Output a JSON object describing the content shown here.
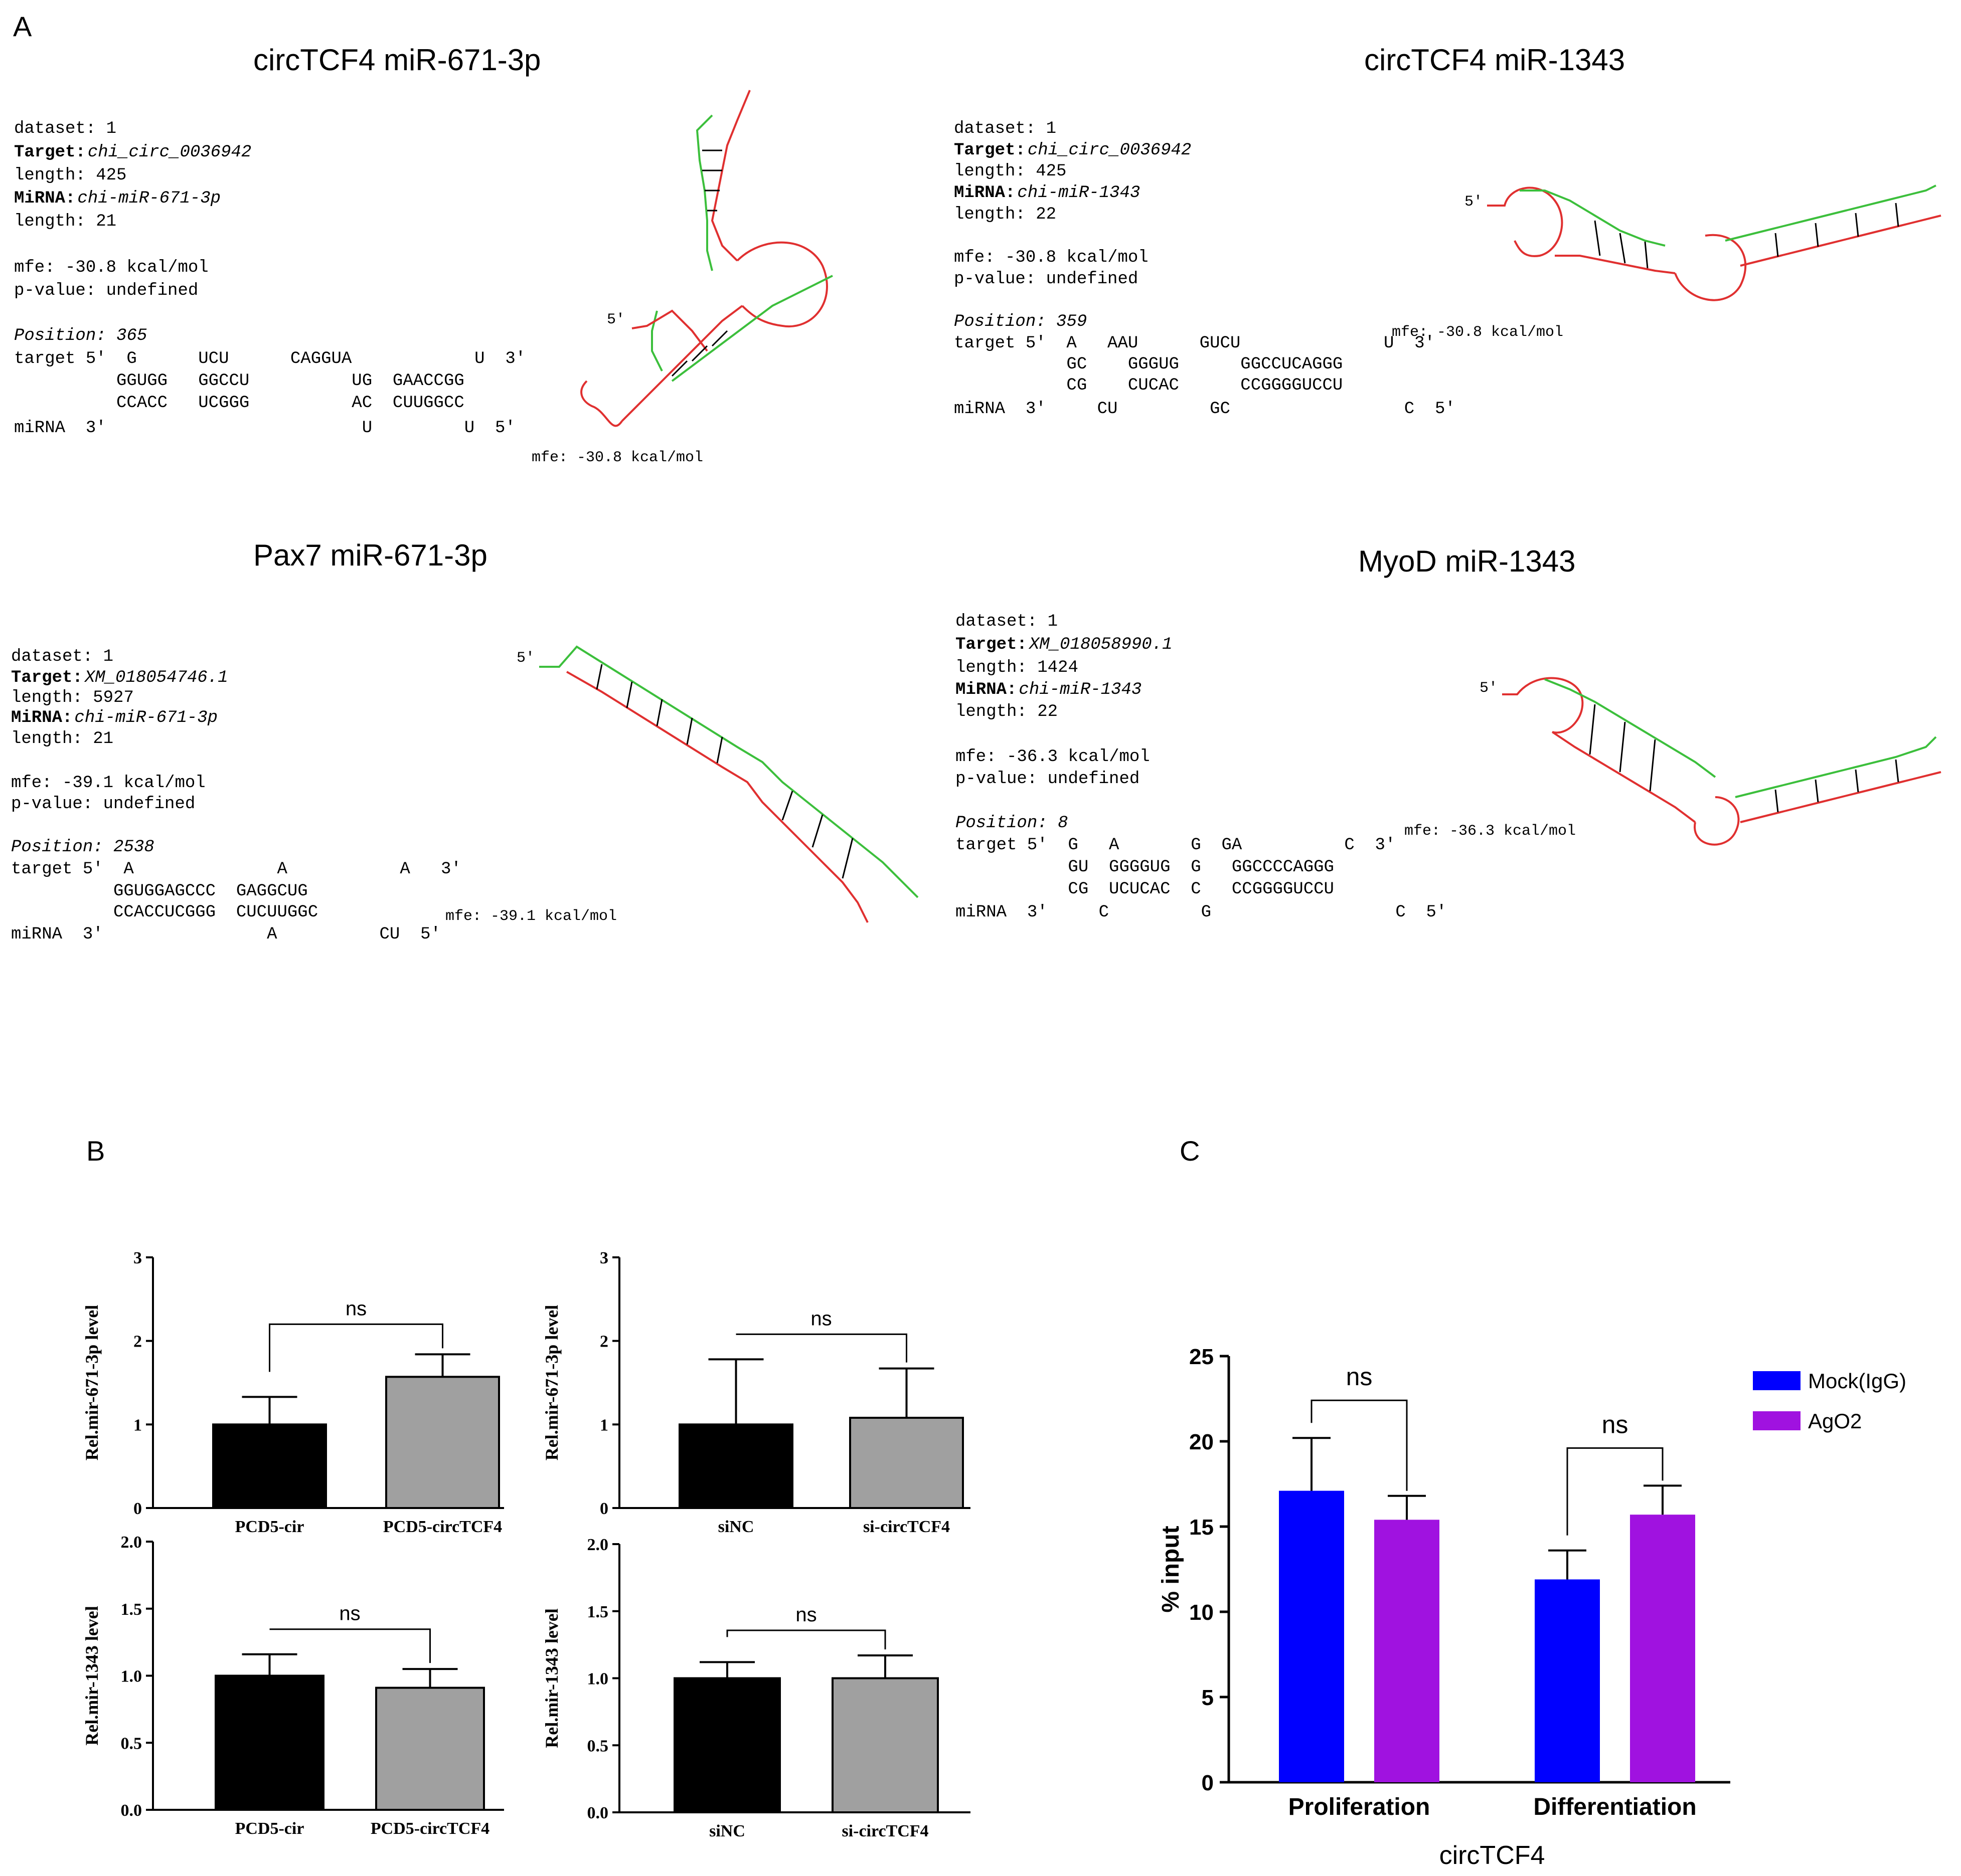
{
  "panel_labels": {
    "a": "A",
    "b": "B",
    "c": "C"
  },
  "panel_a": {
    "q1": {
      "title": "circTCF4  miR-671-3p",
      "info": [
        {
          "k": "dataset:",
          "v": "1"
        },
        {
          "k": "Target:",
          "v": "chi_circ_0036942"
        },
        {
          "k": "length:",
          "v": "425"
        },
        {
          "k": "MiRNA:",
          "v": "chi-miR-671-3p"
        },
        {
          "k": "length:",
          "v": "21"
        },
        {
          "k": "mfe:",
          "v": "-30.8 kcal/mol"
        },
        {
          "k": "p-value:",
          "v": "undefined"
        },
        {
          "k": "Position:",
          "v": "365"
        }
      ],
      "align": [
        "target 5'  G      UCU      CAGGUA            U  3'",
        "          GGUGG   GGCCU          UG  GAACCGG",
        "          CCACC   UCGGG          AC  CUUGGCC",
        "miRNA  3'                         U         U  5'"
      ],
      "mfe_label": "mfe: -30.8 kcal/mol"
    },
    "q2": {
      "title": "circTCF4  miR-1343",
      "info": [
        {
          "k": "dataset:",
          "v": "1"
        },
        {
          "k": "Target:",
          "v": "chi_circ_0036942"
        },
        {
          "k": "length:",
          "v": "425"
        },
        {
          "k": "MiRNA:",
          "v": "chi-miR-1343"
        },
        {
          "k": "length:",
          "v": "22"
        },
        {
          "k": "mfe:",
          "v": "-30.8 kcal/mol"
        },
        {
          "k": "p-value:",
          "v": "undefined"
        },
        {
          "k": "Position:",
          "v": "359"
        }
      ],
      "align": [
        "target 5'  A   AAU      GUCU              U  3'",
        "           GC    GGGUG      GGCCUCAGGG",
        "           CG    CUCAC      CCGGGGUCCU",
        "miRNA  3'     CU         GC                 C  5'"
      ],
      "mfe_label": "mfe: -30.8 kcal/mol"
    },
    "q3": {
      "title": "Pax7  miR-671-3p",
      "info": [
        {
          "k": "dataset:",
          "v": "1"
        },
        {
          "k": "Target:",
          "v": "XM_018054746.1"
        },
        {
          "k": "length:",
          "v": "5927"
        },
        {
          "k": "MiRNA:",
          "v": "chi-miR-671-3p"
        },
        {
          "k": "length:",
          "v": "21"
        },
        {
          "k": "mfe:",
          "v": "-39.1 kcal/mol"
        },
        {
          "k": "p-value:",
          "v": "undefined"
        },
        {
          "k": "Position:",
          "v": "2538"
        }
      ],
      "align": [
        "target 5'  A              A           A   3'",
        "          GGUGGAGCCC  GAGGCUG",
        "          CCACCUCGGG  CUCUUGGC",
        "miRNA  3'                A          CU  5'"
      ],
      "mfe_label": "mfe: -39.1 kcal/mol"
    },
    "q4": {
      "title": "MyoD  miR-1343",
      "info": [
        {
          "k": "dataset:",
          "v": "1"
        },
        {
          "k": "Target:",
          "v": "XM_018058990.1"
        },
        {
          "k": "length:",
          "v": "1424"
        },
        {
          "k": "MiRNA:",
          "v": "chi-miR-1343"
        },
        {
          "k": "length:",
          "v": "22"
        },
        {
          "k": "mfe:",
          "v": "-36.3 kcal/mol"
        },
        {
          "k": "p-value:",
          "v": "undefined"
        },
        {
          "k": "Position:",
          "v": "8"
        }
      ],
      "align": [
        "target 5'  G   A       G  GA          C  3'",
        "           GU  GGGGUG  G   GGCCCCAGGG",
        "           CG  UCUCAC  C   CCGGGGUCCU",
        "miRNA  3'     C         G                  C  5'"
      ],
      "mfe_label": "mfe: -36.3 kcal/mol"
    }
  },
  "chart_data": [
    {
      "type": "bar",
      "categories": [
        "PCD5-cir",
        "PCD5-circTCF4"
      ],
      "values": [
        1.0,
        1.57
      ],
      "errors": [
        0.33,
        0.27
      ],
      "colors": [
        "#000000",
        "#a0a0a0"
      ],
      "ylabel": "Rel.mir-671-3p level",
      "ylim": [
        0,
        3
      ],
      "yticks": [
        "0",
        "1",
        "2",
        "3"
      ],
      "annotation": "ns"
    },
    {
      "type": "bar",
      "categories": [
        "siNC",
        "si-circTCF4"
      ],
      "values": [
        1.0,
        1.08
      ],
      "errors": [
        0.78,
        0.59
      ],
      "colors": [
        "#000000",
        "#a0a0a0"
      ],
      "ylabel": "Rel.mir-671-3p level",
      "ylim": [
        0,
        3
      ],
      "yticks": [
        "0",
        "1",
        "2",
        "3"
      ],
      "annotation": "ns"
    },
    {
      "type": "bar",
      "categories": [
        "PCD5-cir",
        "PCD5-circTCF4"
      ],
      "values": [
        1.0,
        0.91
      ],
      "errors": [
        0.16,
        0.14
      ],
      "colors": [
        "#000000",
        "#a0a0a0"
      ],
      "ylabel": "Rel.mir-1343 level",
      "ylim": [
        0,
        2
      ],
      "yticks": [
        "0.0",
        "0.5",
        "1.0",
        "1.5",
        "2.0"
      ],
      "annotation": "ns"
    },
    {
      "type": "bar",
      "categories": [
        "siNC",
        "si-circTCF4"
      ],
      "values": [
        1.0,
        1.0
      ],
      "errors": [
        0.12,
        0.17
      ],
      "colors": [
        "#000000",
        "#a0a0a0"
      ],
      "ylabel": "Rel.mir-1343 level",
      "ylim": [
        0,
        2
      ],
      "yticks": [
        "0.0",
        "0.5",
        "1.0",
        "1.5",
        "2.0"
      ],
      "annotation": "ns"
    },
    {
      "type": "bar",
      "categories": [
        "Proliferation",
        "Differentiation"
      ],
      "series": [
        {
          "name": "Mock(IgG)",
          "values": [
            17.1,
            11.9
          ],
          "errors": [
            3.1,
            1.7
          ],
          "color": "#0000ff"
        },
        {
          "name": "AgO2",
          "values": [
            15.4,
            15.7
          ],
          "errors": [
            1.4,
            1.7
          ],
          "color": "#a012e0"
        }
      ],
      "ylabel": "% input",
      "xlabel": "circTCF4",
      "ylim": [
        0,
        25
      ],
      "yticks": [
        "0",
        "5",
        "10",
        "15",
        "20",
        "25"
      ],
      "annotations": [
        "ns",
        "ns"
      ],
      "legend": "top-right"
    }
  ]
}
